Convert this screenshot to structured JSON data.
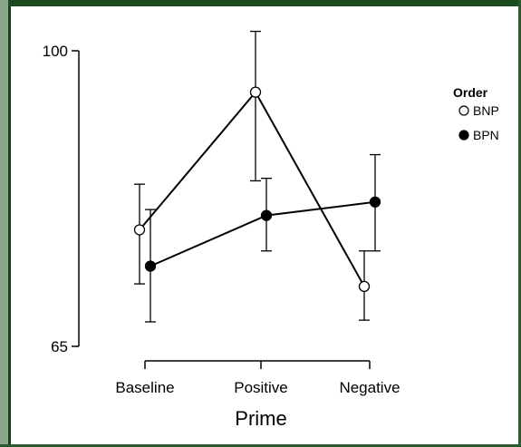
{
  "chart_data": {
    "type": "line",
    "title": "",
    "xlabel": "Prime",
    "ylabel": "",
    "categories": [
      "Baseline",
      "Positive",
      "Negative"
    ],
    "ylim": [
      65,
      100
    ],
    "yticks": [
      65,
      100
    ],
    "grid": false,
    "legend": {
      "title": "Order",
      "placement": "top-right"
    },
    "series": [
      {
        "name": "BNP",
        "marker": "open-circle",
        "values": [
          78.8,
          95.1,
          72.1
        ],
        "err_low": [
          72.4,
          84.6,
          68.1
        ],
        "err_high": [
          84.2,
          102.3,
          76.3
        ],
        "color": "#000000"
      },
      {
        "name": "BPN",
        "marker": "filled-circle",
        "values": [
          74.5,
          80.5,
          82.1
        ],
        "err_low": [
          67.9,
          76.3,
          76.3
        ],
        "err_high": [
          81.2,
          84.9,
          87.7
        ],
        "color": "#000000"
      }
    ]
  }
}
